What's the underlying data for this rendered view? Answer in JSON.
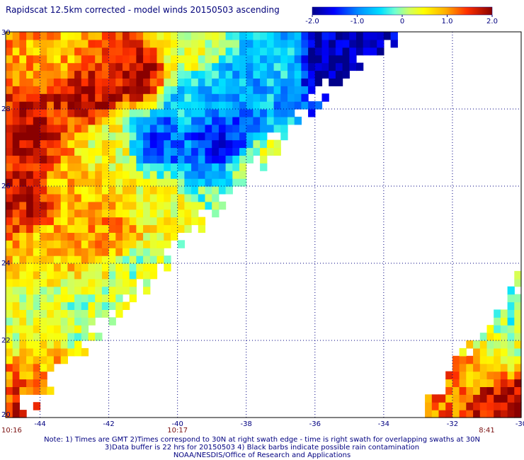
{
  "chart_data": {
    "type": "heatmap",
    "title": "Rapidscat 12.5km corrected - model winds 20150503 ascending",
    "x_ticks": [
      -44,
      -42,
      -40,
      -38,
      -36,
      -34,
      -32,
      -30
    ],
    "x_tick_labels": [
      "-44",
      "-42",
      "-40",
      "-38",
      "-36",
      "-34",
      "-32",
      "-30"
    ],
    "y_ticks": [
      20,
      22,
      24,
      26,
      28,
      30
    ],
    "y_tick_labels": [
      "20",
      "22",
      "24",
      "26",
      "28",
      "30"
    ],
    "xlim": [
      -45,
      -30
    ],
    "ylim": [
      20,
      30
    ],
    "colorbar": {
      "range": [
        -2.0,
        2.0
      ],
      "tick_values": [
        -2.0,
        -1.0,
        0,
        1.0,
        2.0
      ],
      "tick_labels": [
        "-2.0",
        "-1.0",
        "0",
        "1.0",
        "2.0"
      ],
      "placement": "top-right"
    },
    "grid": true,
    "time_labels": [
      {
        "x": -45,
        "text": "10:16"
      },
      {
        "x": -40,
        "text": "10:17"
      },
      {
        "x": -31,
        "text": "8:41"
      }
    ],
    "swaths": [
      {
        "region": "left swath",
        "lon_range": [
          -45,
          -33.8
        ],
        "lat_range": [
          20,
          30
        ],
        "field": [
          {
            "lon": -44.3,
            "lat": 27.2,
            "value": 1.8
          },
          {
            "lon": -44.4,
            "lat": 25.8,
            "value": 1.7
          },
          {
            "lon": -42.6,
            "lat": 28.4,
            "value": 1.8
          },
          {
            "lon": -41.2,
            "lat": 28.9,
            "value": 1.8
          },
          {
            "lon": -43.4,
            "lat": 29.5,
            "value": 0.9
          },
          {
            "lon": -39.8,
            "lat": 29.6,
            "value": 0.4
          },
          {
            "lon": -39.5,
            "lat": 28.3,
            "value": -0.6
          },
          {
            "lon": -38.3,
            "lat": 28.5,
            "value": -0.7
          },
          {
            "lon": -38.6,
            "lat": 27.3,
            "value": -1.5
          },
          {
            "lon": -40.6,
            "lat": 27.2,
            "value": -1.2
          },
          {
            "lon": -35.6,
            "lat": 29.1,
            "value": -1.9
          },
          {
            "lon": -35.0,
            "lat": 29.6,
            "value": -1.9
          },
          {
            "lon": -37.0,
            "lat": 29.2,
            "value": -0.6
          },
          {
            "lon": -42.0,
            "lat": 27.0,
            "value": 0.4
          },
          {
            "lon": -41.0,
            "lat": 25.6,
            "value": 0.5
          },
          {
            "lon": -43.3,
            "lat": 26.0,
            "value": 0.8
          },
          {
            "lon": -43.5,
            "lat": 24.4,
            "value": 0.8
          },
          {
            "lon": -42.0,
            "lat": 24.8,
            "value": 1.0
          },
          {
            "lon": -44.3,
            "lat": 22.5,
            "value": 0.3
          },
          {
            "lon": -43.8,
            "lat": 21.0,
            "value": 0.9
          },
          {
            "lon": -44.6,
            "lat": 20.3,
            "value": 1.5
          },
          {
            "lon": -42.8,
            "lat": 22.6,
            "value": 0.1
          },
          {
            "lon": -41.0,
            "lat": 23.8,
            "value": 0.1
          },
          {
            "lon": -37.6,
            "lat": 26.6,
            "value": 0.2
          }
        ]
      },
      {
        "region": "right swath",
        "lon_range": [
          -32.9,
          -30
        ],
        "lat_range": [
          20,
          23.7
        ],
        "field": [
          {
            "lon": -30.2,
            "lat": 22.7,
            "value": -0.1
          },
          {
            "lon": -30.6,
            "lat": 21.8,
            "value": 0.2
          },
          {
            "lon": -31.3,
            "lat": 21.2,
            "value": 0.9
          },
          {
            "lon": -32.1,
            "lat": 20.6,
            "value": 1.2
          },
          {
            "lon": -30.8,
            "lat": 20.4,
            "value": 1.8
          },
          {
            "lon": -30.2,
            "lat": 20.4,
            "value": 1.7
          }
        ]
      }
    ]
  },
  "notes": [
    "Note: 1) Times are GMT 2)Times correspond to 30N at right swath edge - time is right swath for overlapping swaths at 30N",
    "3)Data buffer is 22 hrs for 20150503 4) Black barbs indicate possible rain contamination",
    "NOAA/NESDIS/Office of Research and Applications"
  ]
}
